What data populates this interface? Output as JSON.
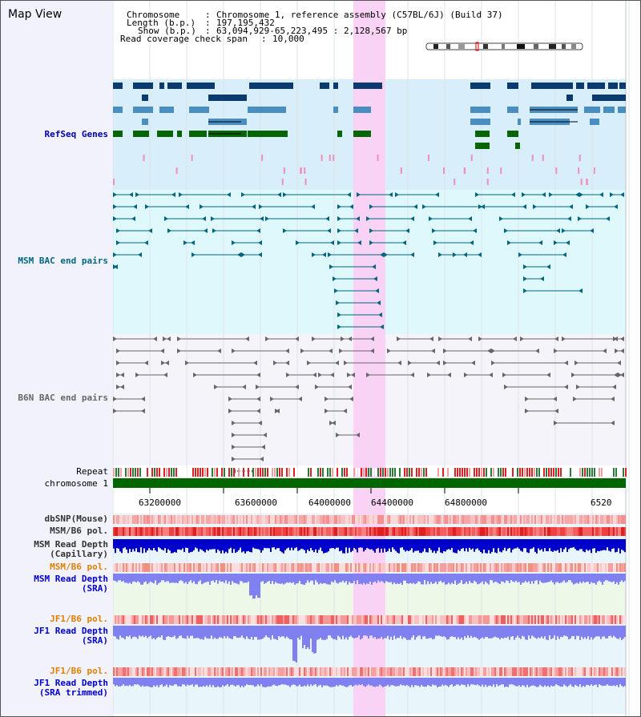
{
  "title": "Map View",
  "info": {
    "chromosome_label": "Chromosome",
    "chromosome_value": "Chromosome 1, reference assembly (C57BL/6J) (Build 37)",
    "length_label": "Length (b.p.)",
    "length_value": "197,195,432",
    "show_label": "Show (b.p.)",
    "show_value": "63,094,929-65,223,495 : 2,128,567 bp",
    "coverage_label": "Read coverage check span",
    "coverage_value": "10,000"
  },
  "tracks": {
    "refseq": "RefSeq Genes",
    "msm_bac": "MSM BAC end pairs",
    "b6n_bac": "B6N BAC end pairs",
    "repeat": "Repeat",
    "chromosome": "chromosome 1",
    "dbsnp": "dbSNP(Mouse)",
    "msm_b6_pol_1": "MSM/B6 pol.",
    "msm_depth_cap_1": "MSM Read Depth",
    "msm_depth_cap_2": "(Capillary)",
    "msm_b6_pol_2": "MSM/B6 pol.",
    "msm_depth_sra_1": "MSM Read Depth",
    "msm_depth_sra_2": "(SRA)",
    "jf1_b6_pol_1": "JF1/B6 pol.",
    "jf1_depth_sra_1": "JF1 Read Depth",
    "jf1_depth_sra_2": "(SRA)",
    "jf1_b6_pol_2": "JF1/B6 pol.",
    "jf1_depth_trim_1": "JF1 Read Depth",
    "jf1_depth_trim_2": "(SRA trimmed)"
  },
  "axis": {
    "ticks": [
      "63200000",
      "63600000",
      "64000000",
      "64400000",
      "64800000",
      "6520"
    ]
  },
  "colors": {
    "highlight": "#f9d2f5",
    "refseq_bg": "#d8eefa",
    "msm_bg": "#dff8fb",
    "b6n_bg": "#f4f4fa",
    "depth_blue": "#0000cc",
    "depth_light": "#8080f0",
    "chromosome_green": "#006600",
    "label_blue": "#0000aa",
    "label_teal": "#006680",
    "label_orange": "#e08000"
  }
}
